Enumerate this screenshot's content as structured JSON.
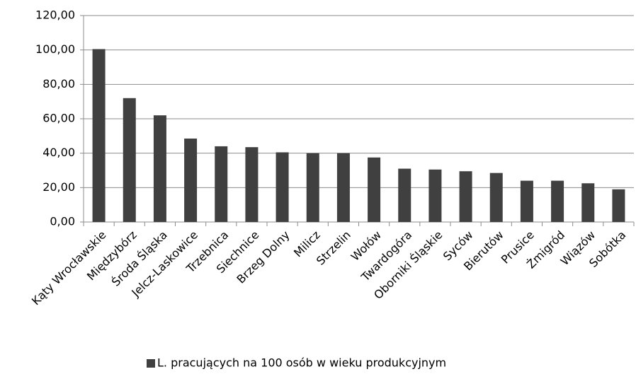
{
  "chart_data": {
    "type": "bar",
    "categories": [
      "Kąty Wrocławskie",
      "Międzybórz",
      "Środa Śląska",
      "Jelcz-Laskowice",
      "Trzebnica",
      "Siechnice",
      "Brzeg Dolny",
      "Milicz",
      "Strzelin",
      "Wołów",
      "Twardogóra",
      "Oborniki Śląskie",
      "Syców",
      "Bierutów",
      "Prusice",
      "Żmigród",
      "Wiązów",
      "Sobótka"
    ],
    "series": [
      {
        "name": "L. pracujących na 100 osób w wieku produkcyjnym",
        "color": "#404040",
        "values": [
          100.5,
          72,
          62,
          48.5,
          44,
          43.5,
          40.5,
          40,
          40,
          37.5,
          31,
          30.5,
          29.5,
          28.5,
          24,
          24,
          22.5,
          19
        ]
      }
    ],
    "ylim": [
      0,
      120
    ],
    "yticks": [
      {
        "value": 0,
        "label": "0,00"
      },
      {
        "value": 20,
        "label": "20,00"
      },
      {
        "value": 40,
        "label": "40,00"
      },
      {
        "value": 60,
        "label": "60,00"
      },
      {
        "value": 80,
        "label": "80,00"
      },
      {
        "value": 100,
        "label": "100,00"
      },
      {
        "value": 120,
        "label": "120,00"
      }
    ],
    "grid": true,
    "legend": "bottom"
  }
}
